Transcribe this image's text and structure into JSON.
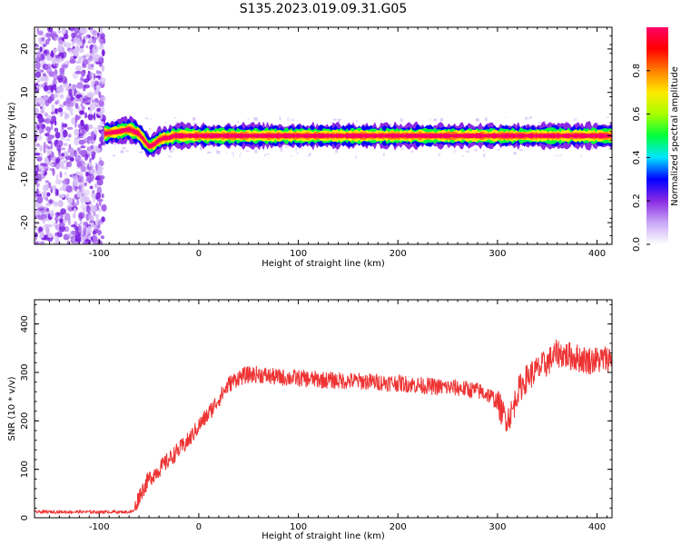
{
  "figure": {
    "title": "S135.2023.019.09.31.G05"
  },
  "colorbar": {
    "label": "Normalized spectral amplitude",
    "ticks": [
      "0.0",
      "0.2",
      "0.4",
      "0.6",
      "0.8"
    ],
    "tick_values": [
      0.0,
      0.2,
      0.4,
      0.6,
      0.8
    ],
    "range": [
      0,
      1
    ],
    "colormap_stops": [
      "#ffffff",
      "#c9a6f7",
      "#8a2be2",
      "#0000ff",
      "#00e5ff",
      "#00ff3c",
      "#a8ff00",
      "#ffea00",
      "#ff7f00",
      "#ff0000",
      "#ff0066"
    ]
  },
  "chart_data": [
    {
      "type": "heatmap",
      "panel": "spectrogram",
      "title": "",
      "xlabel": "Height of straight line (km)",
      "ylabel": "Frequency (Hz)",
      "xlim": [
        -165,
        415
      ],
      "ylim": [
        -25,
        25
      ],
      "xticks": [
        -100,
        0,
        100,
        200,
        300,
        400
      ],
      "xtick_labels": [
        "-100",
        "0",
        "100",
        "200",
        "300",
        "400"
      ],
      "yticks": [
        -20,
        -10,
        0,
        10,
        20
      ],
      "ytick_labels": [
        "-20",
        "-10",
        "0",
        "10",
        "20"
      ],
      "value_label": "Normalized spectral amplitude",
      "noise_region_x": [
        -165,
        -95
      ],
      "ridge": {
        "x": [
          -95,
          -80,
          -70,
          -60,
          -55,
          -50,
          -45,
          -40,
          -35,
          -30,
          -25,
          -20,
          0,
          100,
          200,
          300,
          415
        ],
        "frequency": [
          0.5,
          1.0,
          1.5,
          0.5,
          -1.0,
          -2.5,
          -2.0,
          -1.0,
          -0.5,
          -0.5,
          0.0,
          0.0,
          0.0,
          0.0,
          0.0,
          0.0,
          0.0
        ]
      },
      "ridge_peak_amplitude": 1.0
    },
    {
      "type": "line",
      "panel": "snr",
      "title": "",
      "xlabel": "Height of straight line (km)",
      "ylabel": "SNR (10 * v/v)",
      "xlim": [
        -165,
        415
      ],
      "ylim": [
        0,
        450
      ],
      "xticks": [
        -100,
        0,
        100,
        200,
        300,
        400
      ],
      "xtick_labels": [
        "-100",
        "0",
        "100",
        "200",
        "300",
        "400"
      ],
      "yticks": [
        0,
        100,
        200,
        300,
        400
      ],
      "ytick_labels": [
        "0",
        "100",
        "200",
        "300",
        "400"
      ],
      "series": [
        {
          "color": "#ee3333",
          "x": [
            -165,
            -140,
            -120,
            -100,
            -80,
            -70,
            -65,
            -60,
            -50,
            -40,
            -30,
            -20,
            -10,
            0,
            10,
            20,
            30,
            40,
            50,
            60,
            70,
            80,
            100,
            120,
            140,
            160,
            180,
            200,
            220,
            240,
            260,
            280,
            290,
            300,
            305,
            310,
            315,
            320,
            330,
            340,
            350,
            360,
            370,
            380,
            390,
            400,
            415
          ],
          "y": [
            12,
            12,
            12,
            12,
            12,
            12,
            14,
            45,
            80,
            100,
            120,
            140,
            160,
            190,
            215,
            245,
            275,
            290,
            295,
            296,
            292,
            290,
            288,
            285,
            283,
            282,
            280,
            278,
            274,
            270,
            268,
            262,
            255,
            240,
            215,
            205,
            220,
            260,
            290,
            305,
            320,
            340,
            335,
            330,
            325,
            325,
            330
          ]
        }
      ]
    }
  ]
}
